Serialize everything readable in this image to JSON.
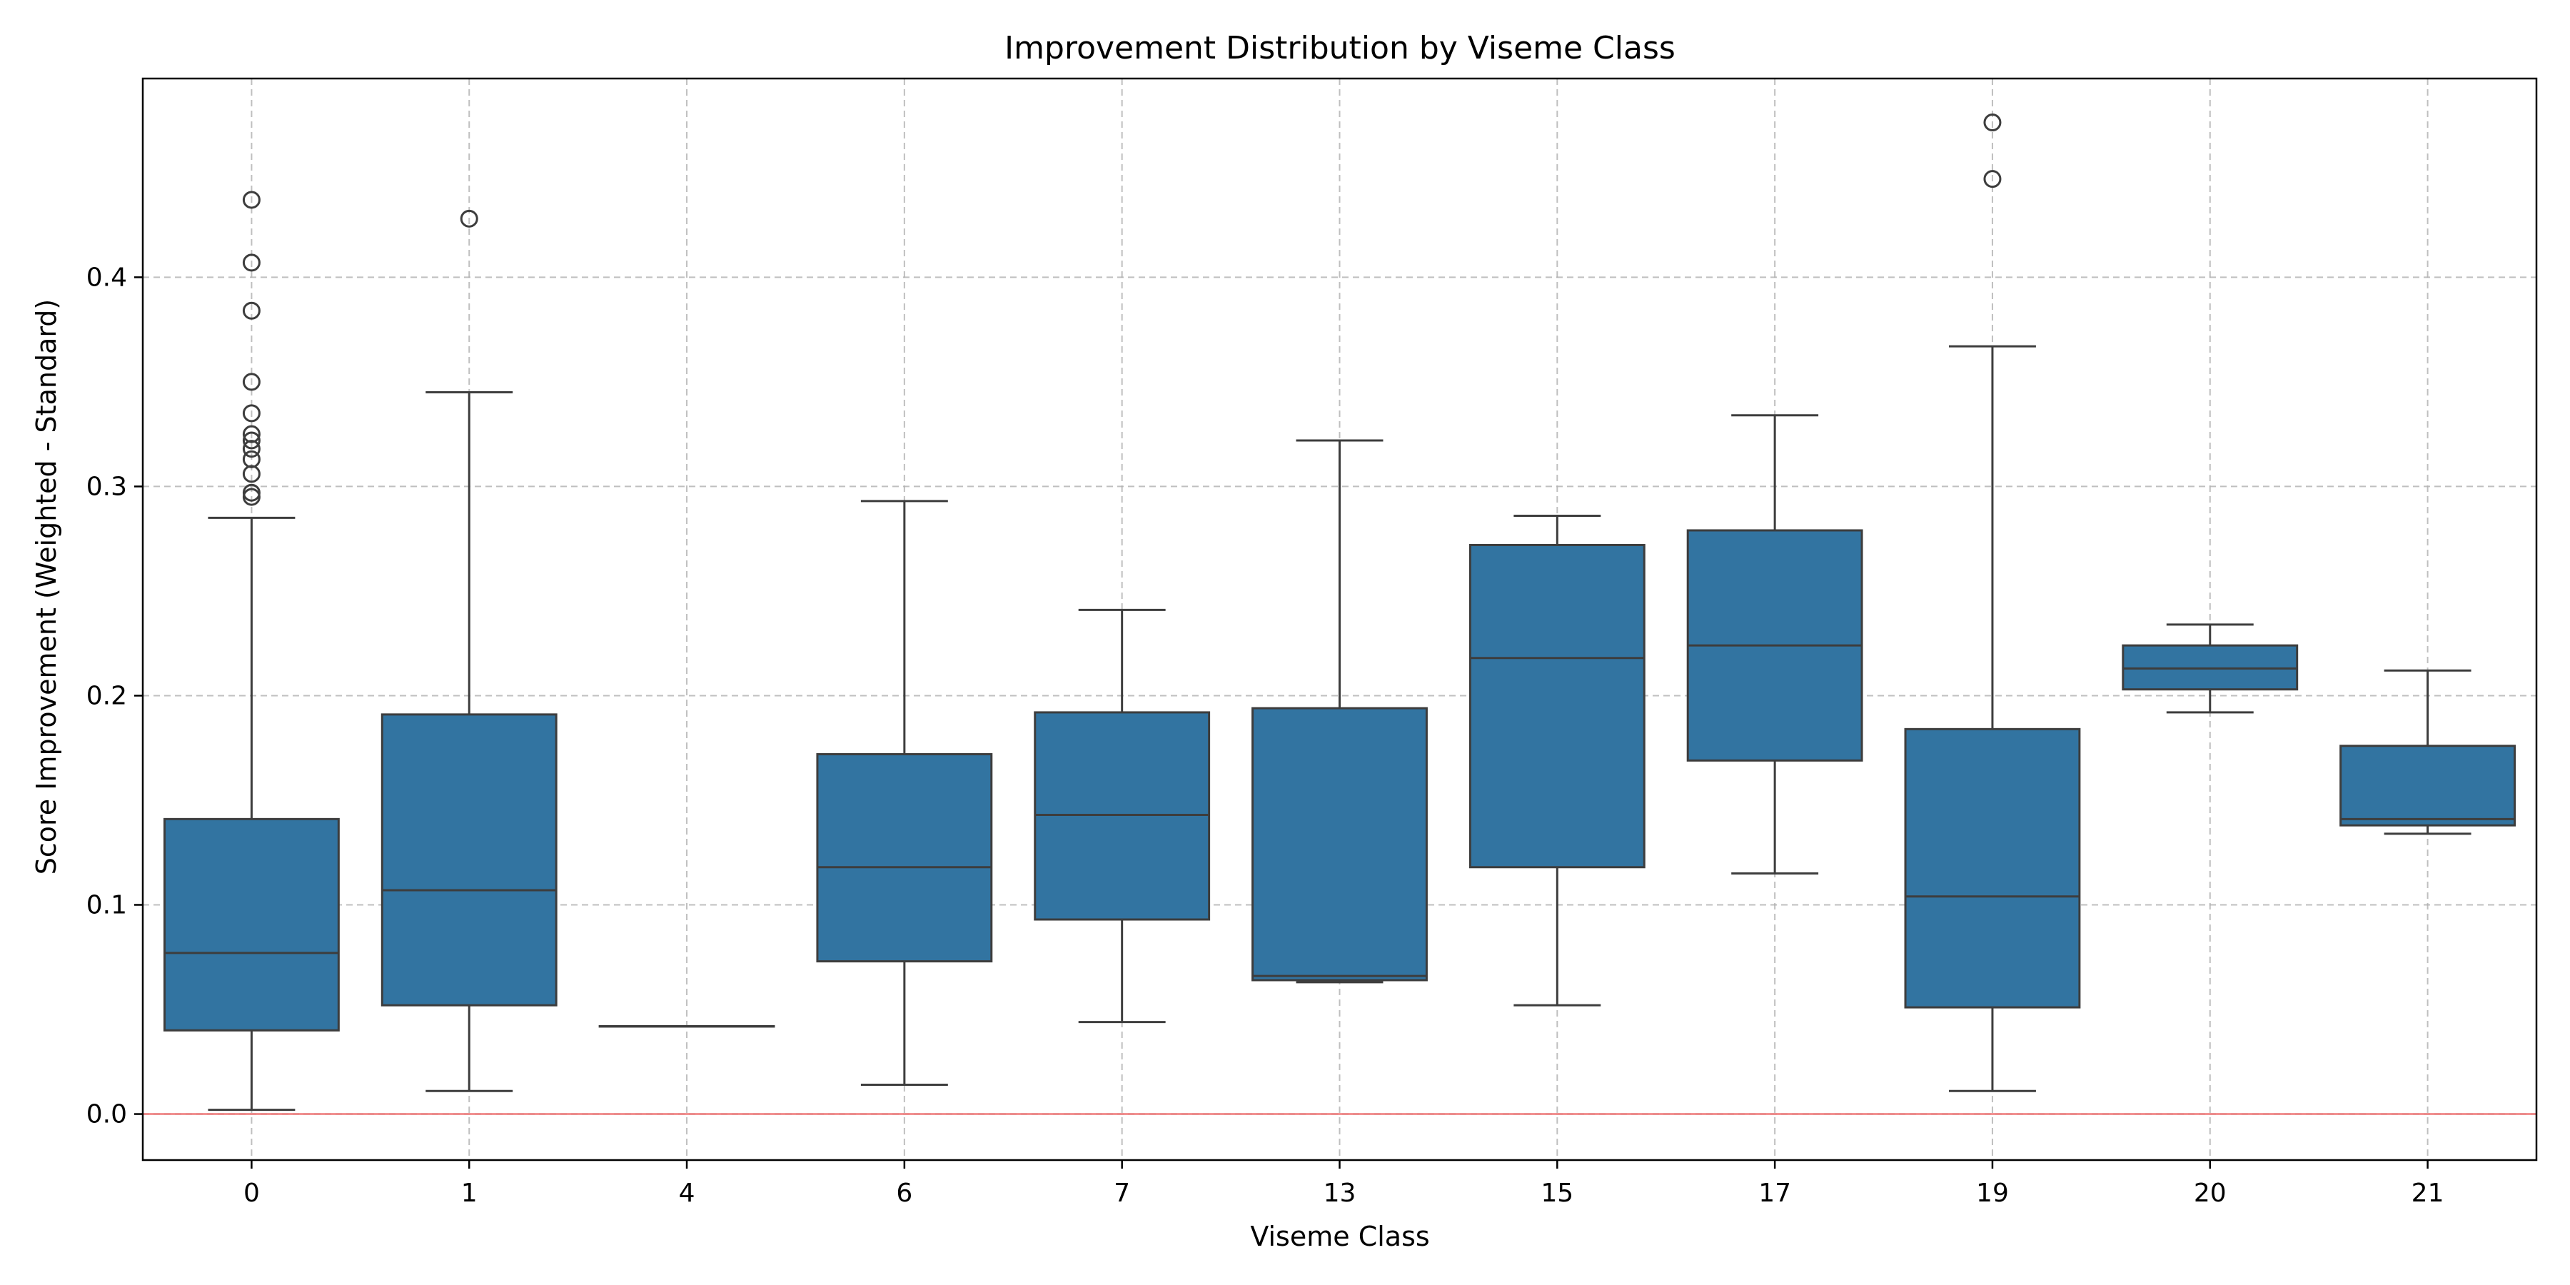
{
  "chart_data": {
    "type": "box",
    "title": "Improvement Distribution by Viseme Class",
    "xlabel": "Viseme Class",
    "ylabel": "Score Improvement (Weighted - Standard)",
    "ylim": [
      -0.022,
      0.495
    ],
    "yticks": [
      0.0,
      0.1,
      0.2,
      0.3,
      0.4
    ],
    "ytick_labels": [
      "0.0",
      "0.1",
      "0.2",
      "0.3",
      "0.4"
    ],
    "grid": true,
    "reference_line": {
      "y": 0.0,
      "color": "#f08080"
    },
    "box_color": "#3274a1",
    "edge_color": "#3d3d3d",
    "categories": [
      "0",
      "1",
      "4",
      "6",
      "7",
      "13",
      "15",
      "17",
      "19",
      "20",
      "21"
    ],
    "boxes": [
      {
        "category": "0",
        "whislo": 0.002,
        "q1": 0.04,
        "median": 0.077,
        "q3": 0.141,
        "whishi": 0.285,
        "fliers": [
          0.295,
          0.297,
          0.306,
          0.313,
          0.318,
          0.322,
          0.325,
          0.335,
          0.35,
          0.384,
          0.407,
          0.437
        ]
      },
      {
        "category": "1",
        "whislo": 0.011,
        "q1": 0.052,
        "median": 0.107,
        "q3": 0.191,
        "whishi": 0.345,
        "fliers": [
          0.428
        ]
      },
      {
        "category": "4",
        "whislo": 0.042,
        "q1": 0.042,
        "median": 0.042,
        "q3": 0.042,
        "whishi": 0.042,
        "fliers": []
      },
      {
        "category": "6",
        "whislo": 0.014,
        "q1": 0.073,
        "median": 0.118,
        "q3": 0.172,
        "whishi": 0.293,
        "fliers": []
      },
      {
        "category": "7",
        "whislo": 0.044,
        "q1": 0.093,
        "median": 0.143,
        "q3": 0.192,
        "whishi": 0.241,
        "fliers": []
      },
      {
        "category": "13",
        "whislo": 0.063,
        "q1": 0.064,
        "median": 0.066,
        "q3": 0.194,
        "whishi": 0.322,
        "fliers": []
      },
      {
        "category": "15",
        "whislo": 0.052,
        "q1": 0.118,
        "median": 0.218,
        "q3": 0.272,
        "whishi": 0.286,
        "fliers": []
      },
      {
        "category": "17",
        "whislo": 0.115,
        "q1": 0.169,
        "median": 0.224,
        "q3": 0.279,
        "whishi": 0.334,
        "fliers": []
      },
      {
        "category": "19",
        "whislo": 0.011,
        "q1": 0.051,
        "median": 0.104,
        "q3": 0.184,
        "whishi": 0.367,
        "fliers": [
          0.447,
          0.474
        ]
      },
      {
        "category": "20",
        "whislo": 0.192,
        "q1": 0.203,
        "median": 0.213,
        "q3": 0.224,
        "whishi": 0.234,
        "fliers": []
      },
      {
        "category": "21",
        "whislo": 0.134,
        "q1": 0.138,
        "median": 0.141,
        "q3": 0.176,
        "whishi": 0.212,
        "fliers": []
      }
    ]
  }
}
